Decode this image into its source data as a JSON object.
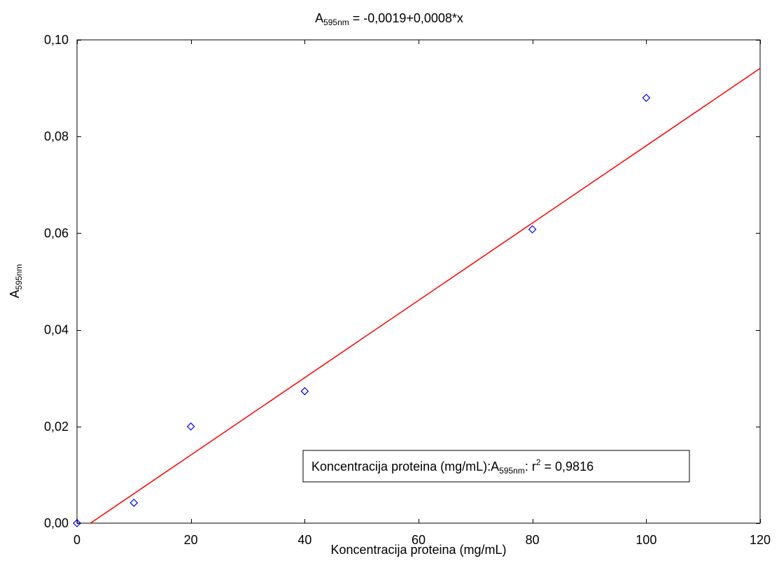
{
  "chart_data": {
    "type": "scatter",
    "title": {
      "main": "A",
      "sub": "595nm",
      "rest": " = -0,0019+0,0008*x"
    },
    "xlabel": "Koncentracija proteina (mg/mL)",
    "ylabel": {
      "main": "A",
      "sub": "595nm"
    },
    "xlim": [
      0,
      120
    ],
    "ylim": [
      0,
      0.1
    ],
    "x_ticks": [
      0,
      20,
      40,
      60,
      80,
      100,
      120
    ],
    "y_ticks": [
      0,
      0.02,
      0.04,
      0.06,
      0.08,
      0.1
    ],
    "x_tick_labels": [
      "0",
      "20",
      "40",
      "60",
      "80",
      "100",
      "120"
    ],
    "y_tick_labels": [
      "0,00",
      "0,02",
      "0,04",
      "0,06",
      "0,08",
      "0,10"
    ],
    "grid": false,
    "series": [
      {
        "marker": "diamond-open",
        "color": "#0000ff",
        "x": [
          0,
          10,
          20,
          40,
          80,
          100
        ],
        "y": [
          0.0,
          0.0042,
          0.02,
          0.0273,
          0.0608,
          0.088
        ]
      }
    ],
    "fit_line": {
      "intercept": -0.0019,
      "slope": 0.0008,
      "color": "#ff0000"
    },
    "legend": {
      "position": "bottom-right",
      "text_main": "Koncentracija proteina (mg/mL):A",
      "text_sub": "595nm",
      "text_after_sub": ":  r",
      "text_sup": "2",
      "text_end": " = 0,9816"
    }
  }
}
